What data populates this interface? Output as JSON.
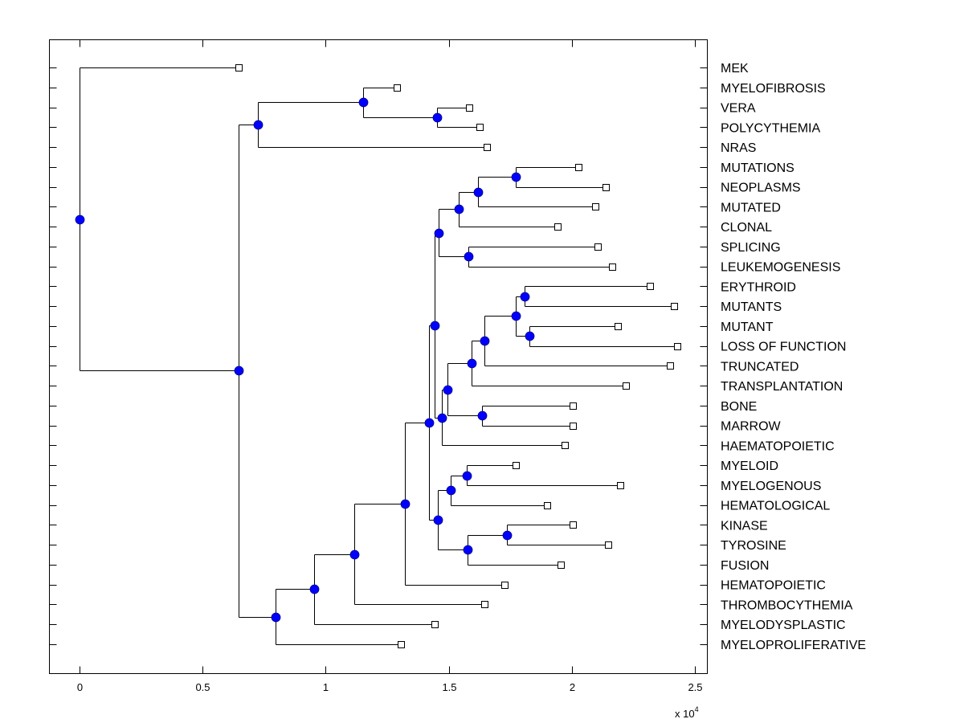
{
  "chart_data": {
    "type": "dendrogram",
    "title": "",
    "xlabel": "",
    "ylabel": "",
    "x_multiplier_label": "x 10",
    "x_multiplier_exponent": "4",
    "xlim": [
      -0.125,
      2.55
    ],
    "xticks": [
      0,
      0.5,
      1,
      1.5,
      2,
      2.5
    ],
    "xtick_labels": [
      "0",
      "0.5",
      "1",
      "1.5",
      "2",
      "2.5"
    ],
    "grid": false,
    "node_color": "#0000ff",
    "leaf_marker": "square",
    "leaves": [
      "MEK",
      "MYELOFIBROSIS",
      "VERA",
      "POLYCYTHEMIA",
      "NRAS",
      "MUTATIONS",
      "NEOPLASMS",
      "MUTATED",
      "CLONAL",
      "SPLICING",
      "LEUKEMOGENESIS",
      "ERYTHROID",
      "MUTANTS",
      "MUTANT",
      "LOSS OF FUNCTION",
      "TRUNCATED",
      "TRANSPLANTATION",
      "BONE",
      "MARROW",
      "HAEMATOPOIETIC",
      "MYELOID",
      "MYELOGENOUS",
      "HEMATOLOGICAL",
      "KINASE",
      "TYROSINE",
      "FUSION",
      "HEMATOPOIETIC",
      "THROMBOCYTHEMIA",
      "MYELODYSPLASTIC",
      "MYELOPROLIFERATIVE"
    ],
    "tree": {
      "x": 0.0,
      "children": [
        {
          "leaf": 0,
          "x": 0.646
        },
        {
          "x": 0.646,
          "children": [
            {
              "x": 0.725,
              "children": [
                {
                  "x": 1.152,
                  "children": [
                    {
                      "leaf": 1,
                      "x": 1.289
                    },
                    {
                      "x": 1.452,
                      "children": [
                        {
                          "leaf": 2,
                          "x": 1.583
                        },
                        {
                          "leaf": 3,
                          "x": 1.625
                        }
                      ]
                    }
                  ]
                },
                {
                  "leaf": 4,
                  "x": 1.655
                }
              ]
            },
            {
              "x": 0.796,
              "children": [
                {
                  "x": 0.953,
                  "children": [
                    {
                      "x": 1.116,
                      "children": [
                        {
                          "x": 1.322,
                          "children": [
                            {
                              "x": 1.42,
                              "children": [
                                {
                                  "x": 1.443,
                                  "children": [
                                    {
                                      "x": 1.459,
                                      "children": [
                                        {
                                          "x": 1.54,
                                          "children": [
                                            {
                                              "x": 1.619,
                                              "children": [
                                                {
                                                  "x": 1.772,
                                                  "children": [
                                                    {
                                                      "leaf": 5,
                                                      "x": 2.027
                                                    },
                                                    {
                                                      "leaf": 6,
                                                      "x": 2.138
                                                    }
                                                  ]
                                                },
                                                {
                                                  "leaf": 7,
                                                  "x": 2.095
                                                }
                                              ]
                                            },
                                            {
                                              "leaf": 8,
                                              "x": 1.942
                                            }
                                          ]
                                        },
                                        {
                                          "x": 1.58,
                                          "children": [
                                            {
                                              "leaf": 9,
                                              "x": 2.105
                                            },
                                            {
                                              "leaf": 10,
                                              "x": 2.164
                                            }
                                          ]
                                        }
                                      ]
                                    },
                                    {
                                      "x": 1.472,
                                      "children": [
                                        {
                                          "x": 1.495,
                                          "children": [
                                            {
                                              "x": 1.593,
                                              "children": [
                                                {
                                                  "x": 1.645,
                                                  "children": [
                                                    {
                                                      "x": 1.772,
                                                      "children": [
                                                        {
                                                          "x": 1.808,
                                                          "children": [
                                                            {
                                                              "leaf": 11,
                                                              "x": 2.317
                                                            },
                                                            {
                                                              "leaf": 12,
                                                              "x": 2.415
                                                            }
                                                          ]
                                                        },
                                                        {
                                                          "x": 1.828,
                                                          "children": [
                                                            {
                                                              "leaf": 13,
                                                              "x": 2.187
                                                            },
                                                            {
                                                              "leaf": 14,
                                                              "x": 2.428
                                                            }
                                                          ]
                                                        }
                                                      ]
                                                    },
                                                    {
                                                      "leaf": 15,
                                                      "x": 2.399
                                                    }
                                                  ]
                                                },
                                                {
                                                  "leaf": 16,
                                                  "x": 2.219
                                                }
                                              ]
                                            },
                                            {
                                              "x": 1.635,
                                              "children": [
                                                {
                                                  "leaf": 17,
                                                  "x": 2.004
                                                },
                                                {
                                                  "leaf": 18,
                                                  "x": 2.004
                                                }
                                              ]
                                            }
                                          ]
                                        },
                                        {
                                          "leaf": 19,
                                          "x": 1.971
                                        }
                                      ]
                                    }
                                  ]
                                },
                                {
                                  "x": 1.456,
                                  "children": [
                                    {
                                      "x": 1.508,
                                      "children": [
                                        {
                                          "x": 1.573,
                                          "children": [
                                            {
                                              "leaf": 20,
                                              "x": 1.772
                                            },
                                            {
                                              "leaf": 21,
                                              "x": 2.196
                                            }
                                          ]
                                        },
                                        {
                                          "leaf": 22,
                                          "x": 1.899
                                        }
                                      ]
                                    },
                                    {
                                      "x": 1.576,
                                      "children": [
                                        {
                                          "x": 1.736,
                                          "children": [
                                            {
                                              "leaf": 23,
                                              "x": 2.004
                                            },
                                            {
                                              "leaf": 24,
                                              "x": 2.148
                                            }
                                          ]
                                        },
                                        {
                                          "leaf": 25,
                                          "x": 1.955
                                        }
                                      ]
                                    }
                                  ]
                                }
                              ]
                            },
                            {
                              "leaf": 26,
                              "x": 1.726
                            }
                          ]
                        },
                        {
                          "leaf": 27,
                          "x": 1.645
                        }
                      ]
                    },
                    {
                      "leaf": 28,
                      "x": 1.443
                    }
                  ]
                },
                {
                  "leaf": 29,
                  "x": 1.305
                }
              ]
            }
          ]
        }
      ]
    }
  }
}
